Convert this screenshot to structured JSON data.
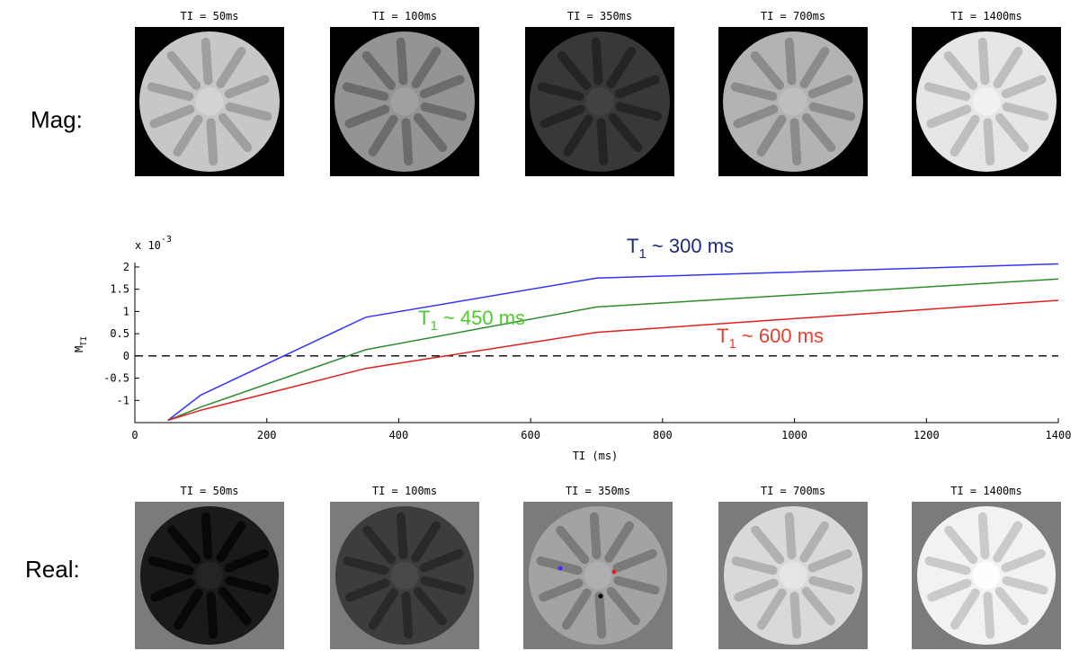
{
  "rows": {
    "mag_label": "Mag:",
    "real_label": "Real:"
  },
  "mag_panels": [
    {
      "title": "TI = 50ms",
      "level": 0.78
    },
    {
      "title": "TI = 100ms",
      "level": 0.58
    },
    {
      "title": "TI = 350ms",
      "level": 0.22
    },
    {
      "title": "TI = 700ms",
      "level": 0.7
    },
    {
      "title": "TI = 1400ms",
      "level": 0.9
    }
  ],
  "real_panels": [
    {
      "title": "TI = 50ms",
      "level": 0.1
    },
    {
      "title": "TI = 100ms",
      "level": 0.24
    },
    {
      "title": "TI = 350ms",
      "level": 0.64
    },
    {
      "title": "TI = 700ms",
      "level": 0.85
    },
    {
      "title": "TI = 1400ms",
      "level": 0.95
    }
  ],
  "colors": {
    "blue": "#3333ff",
    "green": "#2e8b2e",
    "red": "#e02020",
    "anno_blue": "#1c2a7a",
    "anno_green": "#4ccc2a",
    "anno_red": "#e8402e",
    "real_background": "#7b7b7b",
    "mag_background": "#000000"
  },
  "chart_data": {
    "type": "line",
    "xlabel": "TI (ms)",
    "ylabel": "M_TI",
    "y_scale_note": "x 10",
    "y_scale_exp": "-3",
    "xlim": [
      0,
      1400
    ],
    "ylim": [
      -1.5,
      2.1
    ],
    "xticks": [
      0,
      200,
      400,
      600,
      800,
      1000,
      1200,
      1400
    ],
    "yticks": [
      -1,
      -0.5,
      0,
      0.5,
      1,
      1.5,
      2
    ],
    "ytick_labels": [
      "-1",
      "-0.5",
      "0",
      "0.5",
      "1",
      "1.5",
      "2"
    ],
    "x": [
      50,
      100,
      350,
      700,
      1400
    ],
    "series": [
      {
        "color": "#3333ff",
        "values": [
          -1.45,
          -0.88,
          0.87,
          1.75,
          2.07
        ]
      },
      {
        "color": "#2e8b2e",
        "values": [
          -1.45,
          -1.15,
          0.14,
          1.1,
          1.73
        ]
      },
      {
        "color": "#e02020",
        "values": [
          -1.45,
          -1.22,
          -0.28,
          0.53,
          1.25
        ]
      }
    ],
    "reference_line": {
      "y": 0,
      "style": "dashed"
    },
    "annotations": [
      {
        "text": "T",
        "sub": "1",
        "rest": " ~ 300 ms",
        "color": "#1c2a7a"
      },
      {
        "text": "T",
        "sub": "1",
        "rest": " ~ 450 ms",
        "color": "#4ccc2a"
      },
      {
        "text": "T",
        "sub": "1",
        "rest": " ~ 600 ms",
        "color": "#e8402e"
      }
    ]
  }
}
